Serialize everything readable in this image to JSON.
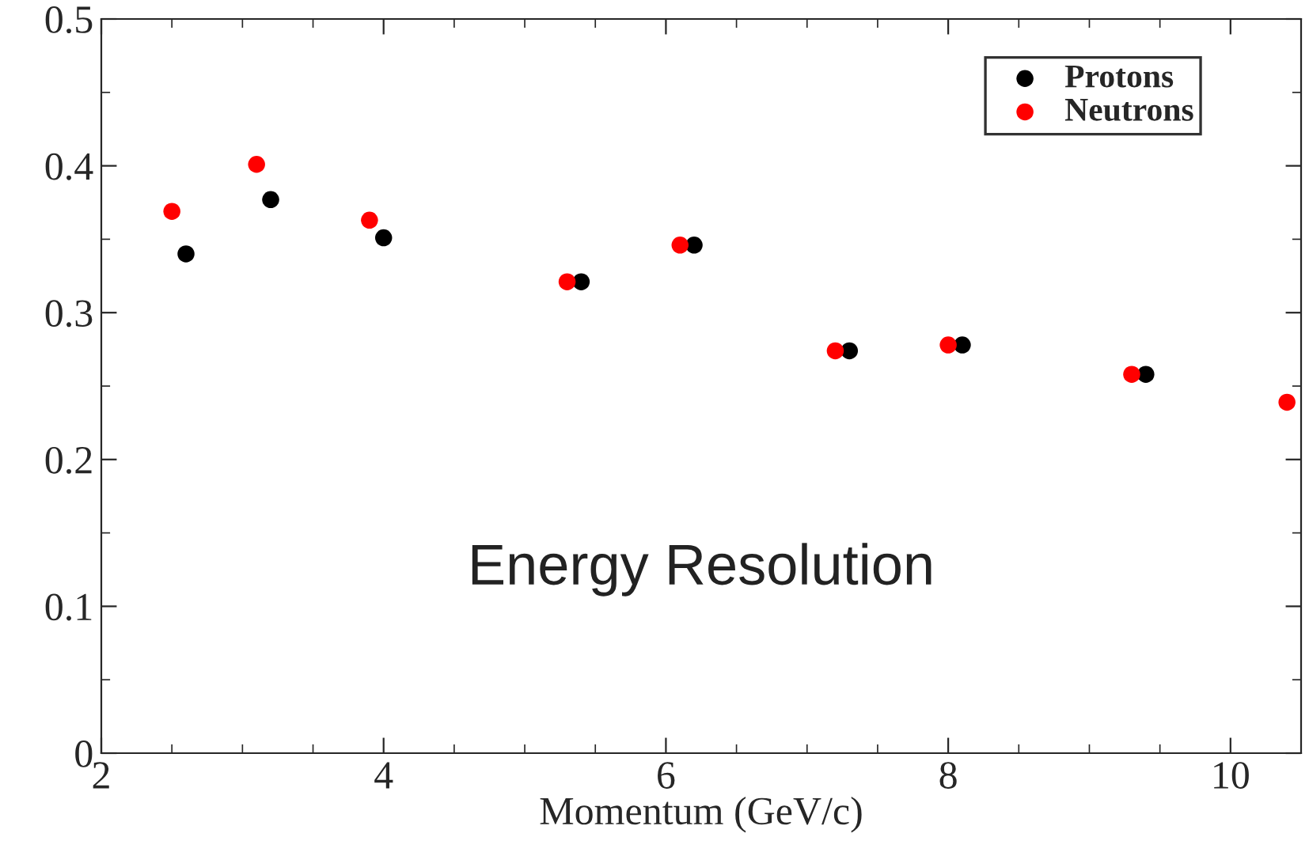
{
  "chart_data": {
    "type": "scatter",
    "xlabel": "Momentum (GeV/c)",
    "xlim": [
      2,
      10.5
    ],
    "xticks": [
      2,
      4,
      6,
      8,
      10
    ],
    "ylim": [
      0,
      0.5
    ],
    "yticks": [
      0,
      0.1,
      0.2,
      0.3,
      0.4,
      0.5
    ],
    "series": [
      {
        "name": "Protons",
        "color": "#000000",
        "x": [
          2.6,
          3.2,
          4.0,
          5.4,
          6.2,
          7.3,
          8.1,
          9.4
        ],
        "values": [
          0.34,
          0.377,
          0.351,
          0.321,
          0.346,
          0.274,
          0.278,
          0.258
        ]
      },
      {
        "name": "Neutrons",
        "color": "#ff0000",
        "x": [
          2.5,
          3.1,
          3.9,
          5.3,
          6.1,
          7.2,
          8.0,
          9.3,
          10.4
        ],
        "values": [
          0.369,
          0.401,
          0.363,
          0.321,
          0.346,
          0.274,
          0.278,
          0.258,
          0.239
        ]
      }
    ],
    "marker": "circle",
    "legend": "top right",
    "grid": false,
    "annotations": [
      "Energy Resolution"
    ]
  }
}
